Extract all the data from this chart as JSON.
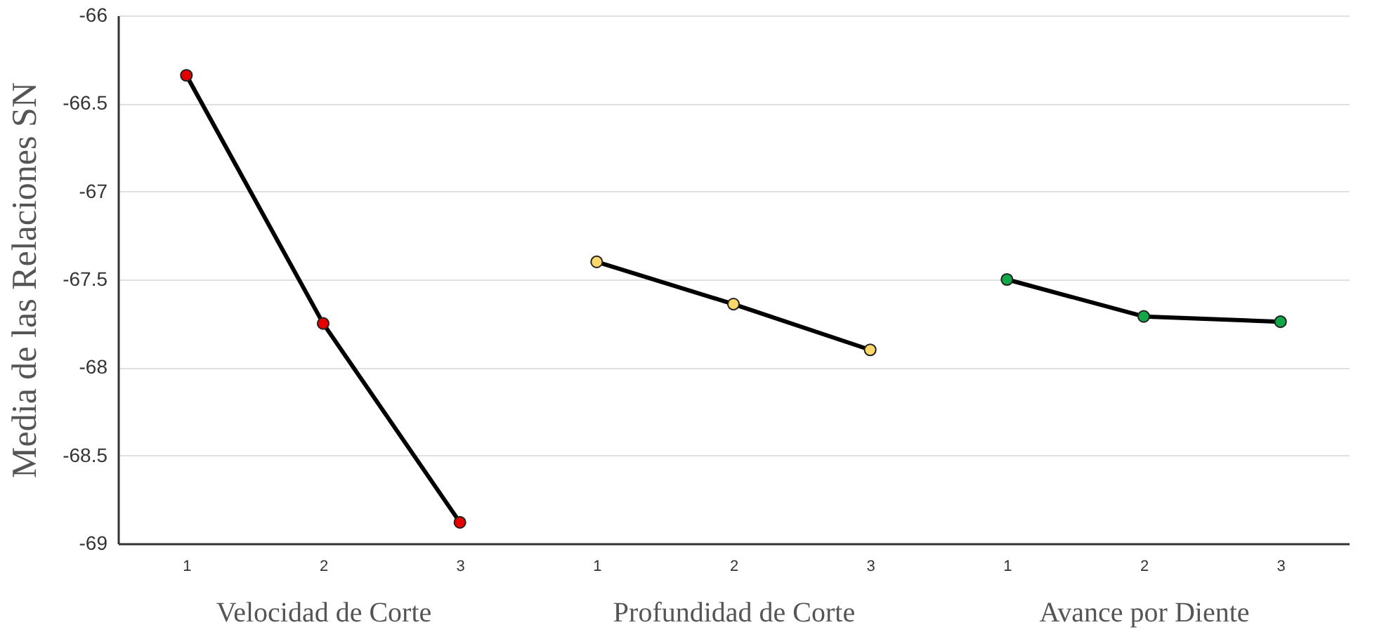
{
  "chart_data": [
    {
      "type": "line",
      "ylabel": "Media de las Relaciones SN",
      "xlabel": "Velocidad de Corte",
      "categories": [
        "1",
        "2",
        "3"
      ],
      "series": [
        {
          "color": "#e60000",
          "values": [
            -66.34,
            -67.75,
            -68.88
          ]
        }
      ],
      "ylim": [
        -69,
        -66
      ],
      "yticks": [
        -69,
        -68.5,
        -68,
        -67.5,
        -67,
        -66.5,
        -66
      ],
      "grid": "y",
      "marker": "circle",
      "line_style": "solid"
    },
    {
      "type": "line",
      "xlabel": "Profundidad de Corte",
      "categories": [
        "1",
        "2",
        "3"
      ],
      "series": [
        {
          "color": "#fcd76a",
          "values": [
            -67.4,
            -67.64,
            -67.9
          ]
        }
      ],
      "ylim": [
        -69,
        -66
      ],
      "yticks": [
        -69,
        -68.5,
        -68,
        -67.5,
        -67,
        -66.5,
        -66
      ],
      "grid": "y",
      "marker": "circle",
      "line_style": "solid",
      "tick_labels": "x"
    },
    {
      "type": "line",
      "xlabel": "Avance por Diente",
      "categories": [
        "1",
        "2",
        "3"
      ],
      "series": [
        {
          "color": "#12a84a",
          "values": [
            -67.5,
            -67.71,
            -67.74
          ]
        }
      ],
      "ylim": [
        -69,
        -66
      ],
      "yticks": [
        -69,
        -68.5,
        -68,
        -67.5,
        -67,
        -66.5,
        -66
      ],
      "grid": "y",
      "marker": "circle",
      "line_style": "solid",
      "tick_labels": "x"
    }
  ]
}
